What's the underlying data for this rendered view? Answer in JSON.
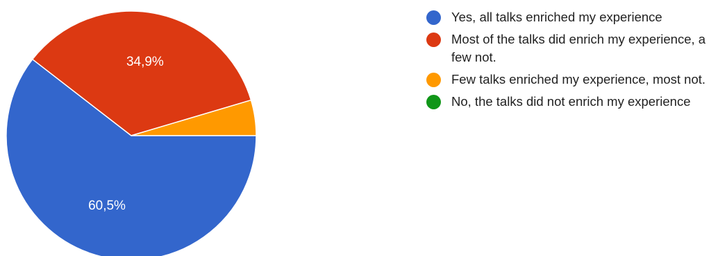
{
  "chart_data": {
    "type": "pie",
    "slices": [
      {
        "label": "Yes, all talks enriched my experience",
        "value": 60.5,
        "display": "60,5%",
        "color": "#3366cc"
      },
      {
        "label": "Most of the talks did enrich my experience, a few not.",
        "value": 34.9,
        "display": "34,9%",
        "color": "#dc3912"
      },
      {
        "label": "Few talks enriched my experience, most not.",
        "value": 4.6,
        "display": "",
        "color": "#ff9900"
      },
      {
        "label": "No, the talks did not enrich my experience",
        "value": 0,
        "display": "",
        "color": "#109618"
      }
    ],
    "legend_position": "right"
  }
}
